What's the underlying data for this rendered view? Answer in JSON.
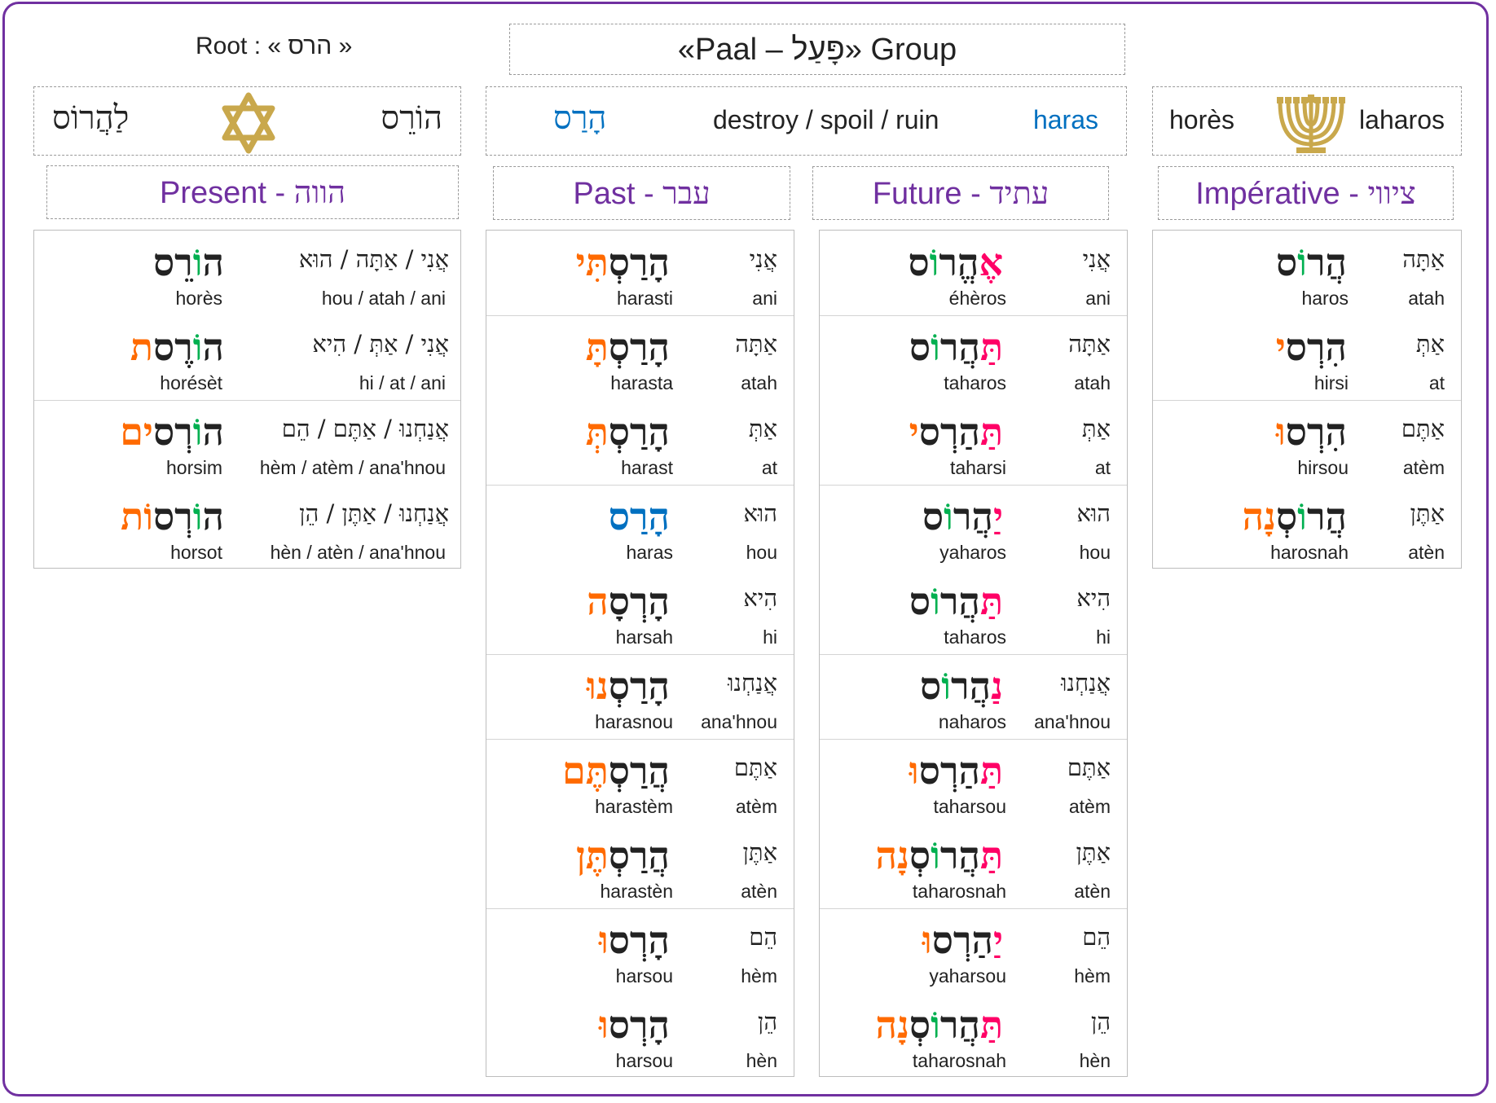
{
  "root": {
    "label": "Root : « הרס  »"
  },
  "group": {
    "label": "«Paal – פָּעַל» Group"
  },
  "infinitive_box": {
    "present_form": "הוֹרֵס",
    "infinitive": "לַהֲרוֹס",
    "icon": "star-of-david-icon"
  },
  "meaning_box": {
    "hebrew": "הָרַס",
    "meaning": "destroy / spoil / ruin",
    "translit": "haras"
  },
  "translit_box": {
    "present": "horès",
    "infinitive": "laharos",
    "icon": "menorah-icon"
  },
  "headers": {
    "present": {
      "fr": "Present",
      "sep": " - ",
      "he": "הווה"
    },
    "past": {
      "fr": "Past",
      "sep": " - ",
      "he": "עבר"
    },
    "future": {
      "fr": "Future",
      "sep": " - ",
      "he": "עתיד"
    },
    "imperative": {
      "fr": "Impérative",
      "sep": " - ",
      "he": "ציווי"
    }
  },
  "present": [
    {
      "verb_stem": "ה",
      "verb_o": "וֹ",
      "verb_end": "רֵס",
      "verb_suffix": "",
      "pronouns": "אֲנִי / אַתָּה / הוּא",
      "translit": "horès",
      "pron_translit": "hou / atah / ani"
    },
    {
      "verb_stem": "ה",
      "verb_o": "וֹ",
      "verb_end": "רֶס",
      "verb_suffix": "ת",
      "pronouns": "אֲנִי / אַתְּ / הִיא",
      "translit": "horésèt",
      "pron_translit": "hi / at / ani"
    },
    {
      "verb_stem": "ה",
      "verb_o": "וֹ",
      "verb_end": "רְס",
      "verb_suffix": "ים",
      "pronouns": "אֲנַחְנוּ / אַתֶּם / הֵם",
      "translit": "horsim",
      "pron_translit": "hèm / atèm / ana'hnou"
    },
    {
      "verb_stem": "ה",
      "verb_o": "וֹ",
      "verb_end": "רְס",
      "verb_suffix": "וֹת",
      "pronouns": "אֲנַחְנוּ / אַתֶּן / הֵן",
      "translit": "horsot",
      "pron_translit": "hèn / atèn  / ana'hnou"
    }
  ],
  "past": [
    {
      "stem": "הָרַסְ",
      "suffix": "תִּי",
      "suffix_color": "orange",
      "pronoun": "אֲנִי",
      "translit": "harasti",
      "pron_translit": "ani"
    },
    {
      "stem": "הָרַסְ",
      "suffix": "תָּ",
      "suffix_color": "orange",
      "pronoun": "אַתָּה",
      "translit": "harasta",
      "pron_translit": "atah"
    },
    {
      "stem": "הָרַסְ",
      "suffix": "תְּ",
      "suffix_color": "orange",
      "pronoun": "אַתְּ",
      "translit": "harast",
      "pron_translit": "at"
    },
    {
      "stem": "הָרַס",
      "suffix": "",
      "suffix_color": "blue",
      "pronoun": "הוּא",
      "translit": "haras",
      "pron_translit": "hou"
    },
    {
      "stem": "הָרְסָ",
      "suffix": "ה",
      "suffix_color": "orange",
      "pronoun": "הִיא",
      "translit": "harsah",
      "pron_translit": "hi"
    },
    {
      "stem": "הָרַסְ",
      "suffix": "נוּ",
      "suffix_color": "orange",
      "pronoun": "אֲנַחְנוּ",
      "translit": "harasnou",
      "pron_translit": "ana'hnou"
    },
    {
      "stem": "הֲרַסְ",
      "suffix": "תֶּם",
      "suffix_color": "orange",
      "pronoun": "אַתֶּם",
      "translit": "harastèm",
      "pron_translit": "atèm"
    },
    {
      "stem": "הֲרַסְ",
      "suffix": "תֶּן",
      "suffix_color": "orange",
      "pronoun": "אַתֶּן",
      "translit": "harastèn",
      "pron_translit": "atèn"
    },
    {
      "stem": "הָרְס",
      "suffix": "וּ",
      "suffix_color": "orange",
      "pronoun": "הֵם",
      "translit": "harsou",
      "pron_translit": "hèm"
    },
    {
      "stem": "הָרְס",
      "suffix": "וּ",
      "suffix_color": "orange",
      "pronoun": "הֵן",
      "translit": "harsou",
      "pron_translit": "hèn"
    }
  ],
  "future": [
    {
      "prefix": "אֶ",
      "mid": "הֱר",
      "o": "וֹ",
      "end": "ס",
      "suffix": "",
      "pronoun": "אֲנִי",
      "translit": "éhèros",
      "pron_translit": "ani"
    },
    {
      "prefix": "תַּ",
      "mid": "הֲר",
      "o": "וֹ",
      "end": "ס",
      "suffix": "",
      "pronoun": "אַתָּה",
      "translit": "taharos",
      "pron_translit": "atah"
    },
    {
      "prefix": "תַּ",
      "mid": "הַרְס",
      "o": "",
      "end": "",
      "suffix": "י",
      "pronoun": "אַתְּ",
      "translit": "taharsi",
      "pron_translit": "at"
    },
    {
      "prefix": "יַ",
      "mid": "הֲר",
      "o": "וֹ",
      "end": "ס",
      "suffix": "",
      "pronoun": "הוּא",
      "translit": "yaharos",
      "pron_translit": "hou"
    },
    {
      "prefix": "תַּ",
      "mid": "הֲר",
      "o": "וֹ",
      "end": "ס",
      "suffix": "",
      "pronoun": "הִיא",
      "translit": "taharos",
      "pron_translit": "hi"
    },
    {
      "prefix": "נַ",
      "mid": "הֲר",
      "o": "וֹ",
      "end": "ס",
      "suffix": "",
      "pronoun": "אֲנַחְנוּ",
      "translit": "naharos",
      "pron_translit": "ana'hnou"
    },
    {
      "prefix": "תַּ",
      "mid": "הַרְס",
      "o": "",
      "end": "",
      "suffix": "וּ",
      "pronoun": "אַתֶּם",
      "translit": "taharsou",
      "pron_translit": "atèm"
    },
    {
      "prefix": "תַּ",
      "mid": "הֲר",
      "o": "וֹ",
      "end": "סְ",
      "suffix": "נָה",
      "pronoun": "אַתֶּן",
      "translit": "taharosnah",
      "pron_translit": "atèn"
    },
    {
      "prefix": "יַ",
      "mid": "הַרְס",
      "o": "",
      "end": "",
      "suffix": "וּ",
      "pronoun": "הֵם",
      "translit": "yaharsou",
      "pron_translit": "hèm"
    },
    {
      "prefix": "תַּ",
      "mid": "הֲר",
      "o": "וֹ",
      "end": "סְ",
      "suffix": "נָה",
      "pronoun": "הֵן",
      "translit": "taharosnah",
      "pron_translit": "hèn"
    }
  ],
  "imperative": [
    {
      "mid": "הֲר",
      "o": "וֹ",
      "end": "ס",
      "suffix": "",
      "pronoun": "אַתָּה",
      "translit": "haros",
      "pron_translit": "atah"
    },
    {
      "mid": "הִרְס",
      "o": "",
      "end": "",
      "suffix": "י",
      "pronoun": "אַתְּ",
      "translit": "hirsi",
      "pron_translit": "at"
    },
    {
      "mid": "הִרְס",
      "o": "",
      "end": "",
      "suffix": "וּ",
      "pronoun": "אַתֶּם",
      "translit": "hirsou",
      "pron_translit": "atèm"
    },
    {
      "mid": "הֲר",
      "o": "וֹ",
      "end": "סְ",
      "suffix": "נָה",
      "pronoun": "אַתֶּן",
      "translit": "harosnah",
      "pron_translit": "atèn"
    }
  ],
  "colors": {
    "purple": "#7030a0",
    "blue": "#0070c0",
    "orange": "#ff6a00",
    "pink": "#ff0066",
    "green": "#00b050",
    "gold": "#c9a84c"
  }
}
